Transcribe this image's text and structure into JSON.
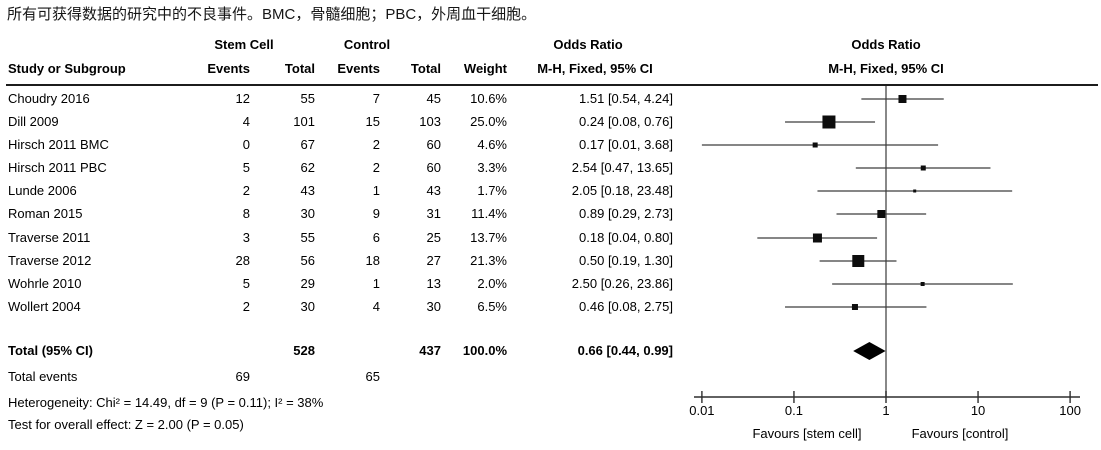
{
  "caption": "所有可获得数据的研究中的不良事件。BMC，骨髓细胞；PBC，外周血干细胞。",
  "header": {
    "group_stem_cell": "Stem Cell",
    "group_control": "Control",
    "odds_ratio_table": "Odds Ratio",
    "odds_ratio_plot": "Odds Ratio",
    "study_or_subgroup": "Study or Subgroup",
    "events_stem": "Events",
    "total_stem": "Total",
    "events_control": "Events",
    "total_control": "Total",
    "weight": "Weight",
    "mh_fixed_table": "M-H, Fixed, 95% CI",
    "mh_fixed_plot": "M-H, Fixed, 95% CI"
  },
  "chart_data": {
    "type": "forest",
    "effect_measure": "Odds Ratio (M-H, Fixed, 95% CI)",
    "x_scale": "log10",
    "x_range": [
      0.01,
      100
    ],
    "studies": [
      {
        "name": "Choudry 2016",
        "e1": 12,
        "t1": 55,
        "e2": 7,
        "t2": 45,
        "weight": "10.6%",
        "w": 10.6,
        "or": 1.51,
        "lo": 0.54,
        "hi": 4.24,
        "label": "1.51 [0.54, 4.24]"
      },
      {
        "name": "Dill 2009",
        "e1": 4,
        "t1": 101,
        "e2": 15,
        "t2": 103,
        "weight": "25.0%",
        "w": 25.0,
        "or": 0.24,
        "lo": 0.08,
        "hi": 0.76,
        "label": "0.24 [0.08, 0.76]"
      },
      {
        "name": "Hirsch 2011 BMC",
        "e1": 0,
        "t1": 67,
        "e2": 2,
        "t2": 60,
        "weight": "4.6%",
        "w": 4.6,
        "or": 0.17,
        "lo": 0.01,
        "hi": 3.68,
        "label": "0.17 [0.01, 3.68]"
      },
      {
        "name": "Hirsch 2011 PBC",
        "e1": 5,
        "t1": 62,
        "e2": 2,
        "t2": 60,
        "weight": "3.3%",
        "w": 3.3,
        "or": 2.54,
        "lo": 0.47,
        "hi": 13.65,
        "label": "2.54 [0.47, 13.65]"
      },
      {
        "name": "Lunde 2006",
        "e1": 2,
        "t1": 43,
        "e2": 1,
        "t2": 43,
        "weight": "1.7%",
        "w": 1.7,
        "or": 2.05,
        "lo": 0.18,
        "hi": 23.48,
        "label": "2.05 [0.18, 23.48]"
      },
      {
        "name": "Roman 2015",
        "e1": 8,
        "t1": 30,
        "e2": 9,
        "t2": 31,
        "weight": "11.4%",
        "w": 11.4,
        "or": 0.89,
        "lo": 0.29,
        "hi": 2.73,
        "label": "0.89 [0.29, 2.73]"
      },
      {
        "name": "Traverse 2011",
        "e1": 3,
        "t1": 55,
        "e2": 6,
        "t2": 25,
        "weight": "13.7%",
        "w": 13.7,
        "or": 0.18,
        "lo": 0.04,
        "hi": 0.8,
        "label": "0.18 [0.04, 0.80]"
      },
      {
        "name": "Traverse 2012",
        "e1": 28,
        "t1": 56,
        "e2": 18,
        "t2": 27,
        "weight": "21.3%",
        "w": 21.3,
        "or": 0.5,
        "lo": 0.19,
        "hi": 1.3,
        "label": "0.50 [0.19, 1.30]"
      },
      {
        "name": "Wohrle 2010",
        "e1": 5,
        "t1": 29,
        "e2": 1,
        "t2": 13,
        "weight": "2.0%",
        "w": 2.0,
        "or": 2.5,
        "lo": 0.26,
        "hi": 23.86,
        "label": "2.50 [0.26, 23.86]"
      },
      {
        "name": "Wollert 2004",
        "e1": 2,
        "t1": 30,
        "e2": 4,
        "t2": 30,
        "weight": "6.5%",
        "w": 6.5,
        "or": 0.46,
        "lo": 0.08,
        "hi": 2.75,
        "label": "0.46 [0.08, 2.75]"
      }
    ],
    "total": {
      "name": "Total (95% CI)",
      "t1": 528,
      "t2": 437,
      "weight": "100.0%",
      "or": 0.66,
      "lo": 0.44,
      "hi": 0.99,
      "label": "0.66 [0.44, 0.99]"
    },
    "total_events": {
      "name": "Total events",
      "e1": 69,
      "e2": 65
    },
    "heterogeneity": "Heterogeneity: Chi² = 14.49, df = 9 (P = 0.11); I² = 38%",
    "overall_effect": "Test for overall effect: Z = 2.00 (P = 0.05)",
    "axis": {
      "ticks": [
        "0.01",
        "0.1",
        "1",
        "10",
        "100"
      ],
      "tick_values": [
        0.01,
        0.1,
        1,
        10,
        100
      ],
      "favours_left": "Favours [stem cell]",
      "favours_right": "Favours [control]"
    },
    "colors": {
      "marker": "#0d0d0d",
      "ci_line": "#3d3d3d",
      "axis": "#2e2e2e",
      "ref_line": "#555555",
      "diamond": "#000000"
    }
  }
}
